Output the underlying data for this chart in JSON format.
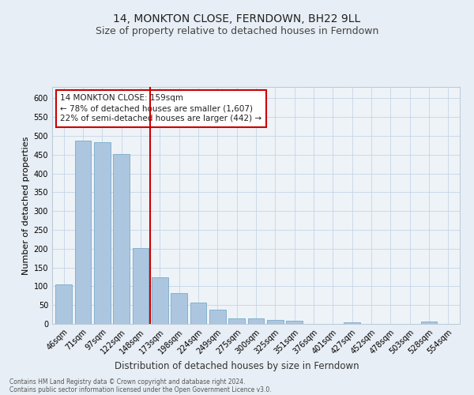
{
  "title": "14, MONKTON CLOSE, FERNDOWN, BH22 9LL",
  "subtitle": "Size of property relative to detached houses in Ferndown",
  "xlabel": "Distribution of detached houses by size in Ferndown",
  "ylabel": "Number of detached properties",
  "categories": [
    "46sqm",
    "71sqm",
    "97sqm",
    "122sqm",
    "148sqm",
    "173sqm",
    "198sqm",
    "224sqm",
    "249sqm",
    "275sqm",
    "300sqm",
    "325sqm",
    "351sqm",
    "376sqm",
    "401sqm",
    "427sqm",
    "452sqm",
    "478sqm",
    "503sqm",
    "528sqm",
    "554sqm"
  ],
  "values": [
    105,
    487,
    482,
    452,
    202,
    123,
    82,
    57,
    38,
    15,
    15,
    10,
    8,
    0,
    0,
    5,
    0,
    0,
    0,
    7,
    0
  ],
  "bar_color": "#adc6e0",
  "bar_edge_color": "#7aaac8",
  "vline_x": 4.5,
  "vline_color": "#cc0000",
  "annotation_text": "14 MONKTON CLOSE: 159sqm\n← 78% of detached houses are smaller (1,607)\n22% of semi-detached houses are larger (442) →",
  "annotation_box_color": "#ffffff",
  "annotation_box_edge": "#cc0000",
  "ylim": [
    0,
    630
  ],
  "yticks": [
    0,
    50,
    100,
    150,
    200,
    250,
    300,
    350,
    400,
    450,
    500,
    550,
    600
  ],
  "footer1": "Contains HM Land Registry data © Crown copyright and database right 2024.",
  "footer2": "Contains public sector information licensed under the Open Government Licence v3.0.",
  "bg_color": "#e8eef5",
  "plot_bg_color": "#eef3f8",
  "title_fontsize": 10,
  "subtitle_fontsize": 9,
  "tick_fontsize": 7,
  "ylabel_fontsize": 8,
  "xlabel_fontsize": 8.5,
  "annotation_fontsize": 7.5,
  "footer_fontsize": 5.5
}
